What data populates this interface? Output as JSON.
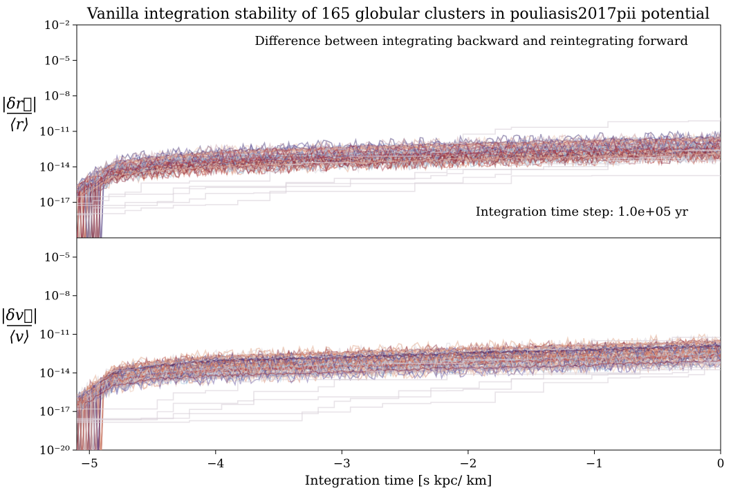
{
  "chart_data": [
    {
      "type": "line",
      "panel": "top",
      "title": "Vanilla integration stability of 165 globular clusters in pouliasis2017pii potential",
      "annotation_top": "Difference between integrating backward and reintegrating forward",
      "annotation_bottom": "Integration time step: 1.0e+05 yr",
      "ylabel_num": "|δr⃗|",
      "ylabel_den": "⟨r⟩",
      "yscale": "log",
      "ylim_exp": [
        -20,
        -2
      ],
      "ytick_exps": [
        -2,
        -5,
        -8,
        -11,
        -14,
        -17
      ],
      "ytick_labels": [
        "10⁻²",
        "10⁻⁵",
        "10⁻⁸",
        "10⁻¹¹",
        "10⁻¹⁴",
        "10⁻¹⁷"
      ],
      "xlim": [
        -5.1,
        0
      ],
      "n_series": 165,
      "envelope": {
        "x": [
          -5.1,
          -4.8,
          -4.5,
          -4.0,
          -3.0,
          -2.0,
          -1.0,
          0.0
        ],
        "upper_exp": [
          -15.2,
          -13.2,
          -12.8,
          -12.3,
          -11.9,
          -11.6,
          -11.3,
          -11.1
        ],
        "median_exp": [
          -16.0,
          -14.3,
          -13.8,
          -13.3,
          -12.9,
          -12.6,
          -12.4,
          -12.2
        ],
        "lower_exp": [
          -17.0,
          -15.3,
          -14.8,
          -14.5,
          -14.2,
          -13.9,
          -13.7,
          -13.5
        ]
      }
    },
    {
      "type": "line",
      "panel": "bottom",
      "ylabel_num": "|δv⃗|",
      "ylabel_den": "⟨v⟩",
      "yscale": "log",
      "ylim_exp": [
        -20,
        -3.5
      ],
      "ytick_exps": [
        -5,
        -8,
        -11,
        -14,
        -17,
        -20
      ],
      "ytick_labels": [
        "10⁻⁵",
        "10⁻⁸",
        "10⁻¹¹",
        "10⁻¹⁴",
        "10⁻¹⁷",
        "10⁻²⁰"
      ],
      "xlabel": "Integration time [s kpc/ km]",
      "xlim": [
        -5.1,
        0
      ],
      "xticks": [
        -5,
        -4,
        -3,
        -2,
        -1,
        0
      ],
      "xtick_labels": [
        "−5",
        "−4",
        "−3",
        "−2",
        "−1",
        "0"
      ],
      "n_series": 165,
      "envelope": {
        "x": [
          -5.1,
          -4.8,
          -4.5,
          -4.0,
          -3.0,
          -2.0,
          -1.0,
          0.0
        ],
        "upper_exp": [
          -15.5,
          -13.3,
          -12.8,
          -12.3,
          -12.0,
          -11.7,
          -11.4,
          -11.1
        ],
        "median_exp": [
          -16.3,
          -14.5,
          -14.0,
          -13.5,
          -13.1,
          -12.8,
          -12.5,
          -12.3
        ],
        "lower_exp": [
          -17.2,
          -15.5,
          -15.0,
          -14.8,
          -14.5,
          -14.2,
          -14.0,
          -13.7
        ]
      }
    }
  ]
}
